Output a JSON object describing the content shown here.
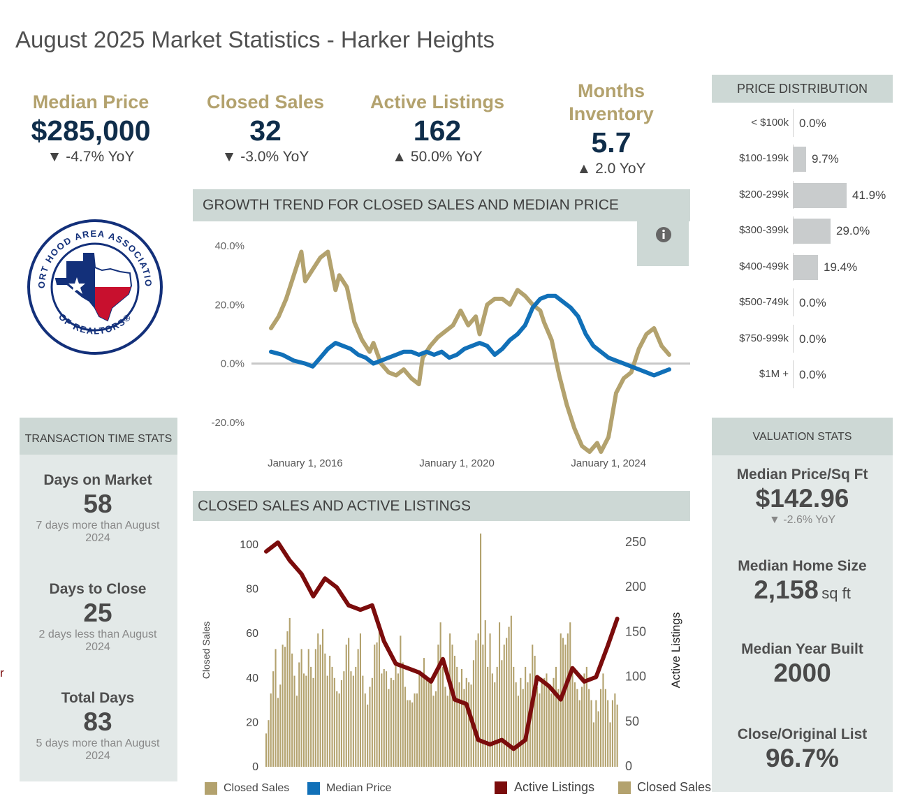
{
  "title": "August 2025 Market Statistics - Harker Heights",
  "kpis": {
    "median_price": {
      "label": "Median Price",
      "value": "$285,000",
      "yoy": "▼ -4.7% YoY"
    },
    "closed_sales": {
      "label": "Closed Sales",
      "value": "32",
      "yoy": "▼ -3.0% YoY"
    },
    "active_listings": {
      "label": "Active Listings",
      "value": "162",
      "yoy": "▲ 50.0% YoY"
    },
    "months_inventory": {
      "label_line1": "Months",
      "label_line2": "Inventory",
      "value": "5.7",
      "yoy": "▲ 2.0 YoY"
    }
  },
  "logo": {
    "top_text": "FORT HOOD AREA ASSOCIATION",
    "bottom_text": "OF REALTORS®"
  },
  "price_distribution": {
    "header": "PRICE DISTRIBUTION",
    "rows": [
      {
        "label": "< $100k",
        "pct": "0.0%",
        "value": 0.0
      },
      {
        "label": "$100-199k",
        "pct": "9.7%",
        "value": 9.7
      },
      {
        "label": "$200-299k",
        "pct": "41.9%",
        "value": 41.9
      },
      {
        "label": "$300-399k",
        "pct": "29.0%",
        "value": 29.0
      },
      {
        "label": "$400-499k",
        "pct": "19.4%",
        "value": 19.4
      },
      {
        "label": "$500-749k",
        "pct": "0.0%",
        "value": 0.0
      },
      {
        "label": "$750-999k",
        "pct": "0.0%",
        "value": 0.0
      },
      {
        "label": "$1M +",
        "pct": "0.0%",
        "value": 0.0
      }
    ]
  },
  "transaction_stats": {
    "header": "TRANSACTION TIME STATS",
    "days_on_market": {
      "label": "Days on Market",
      "value": "58",
      "sub": "7 days more than August 2024"
    },
    "days_to_close": {
      "label": "Days to Close",
      "value": "25",
      "sub": "2 days less than August 2024"
    },
    "total_days": {
      "label": "Total Days",
      "value": "83",
      "sub": "5 days more than August 2024"
    }
  },
  "valuation_stats": {
    "header": "VALUATION STATS",
    "price_per_sqft": {
      "label": "Median Price/Sq Ft",
      "value": "$142.96",
      "yoy": "▼ -2.6% YoY"
    },
    "home_size": {
      "label": "Median Home Size",
      "value": "2,158",
      "unit": "sq ft"
    },
    "year_built": {
      "label": "Median Year Built",
      "value": "2000"
    },
    "close_ratio": {
      "label": "Close/Original List",
      "value": "96.7%"
    }
  },
  "growth_chart": {
    "header": "GROWTH TREND FOR CLOSED SALES AND MEDIAN PRICE",
    "info_icon": "info-icon",
    "legend": [
      {
        "name": "Closed Sales",
        "color": "#b3a26e"
      },
      {
        "name": "Median Price",
        "color": "#1170b8"
      }
    ]
  },
  "sales_chart": {
    "header": "CLOSED SALES AND ACTIVE LISTINGS",
    "legend": [
      {
        "name": "Active Listings",
        "color": "#7b0c0c"
      },
      {
        "name": "Closed Sales",
        "color": "#b3a26e"
      }
    ]
  },
  "stray_char": "r",
  "chart_data": [
    {
      "type": "line",
      "title": "GROWTH TREND FOR CLOSED SALES AND MEDIAN PRICE",
      "ylim": [
        -30,
        45
      ],
      "y_ticks": [
        "40.0%",
        "20.0%",
        "0.0%",
        "-20.0%"
      ],
      "y_tick_values": [
        40,
        20,
        0,
        -20
      ],
      "x_ticks": [
        "January 1, 2016",
        "January 1, 2020",
        "January 1, 2024"
      ],
      "x_tick_values": [
        2016,
        2020,
        2024
      ],
      "x_range": [
        2015.1,
        2025.6
      ],
      "series": [
        {
          "name": "Closed Sales",
          "color": "#b3a26e",
          "x": [
            2015.1,
            2015.3,
            2015.5,
            2015.7,
            2015.9,
            2016.0,
            2016.2,
            2016.4,
            2016.6,
            2016.8,
            2016.9,
            2017.1,
            2017.3,
            2017.5,
            2017.7,
            2017.8,
            2018.0,
            2018.2,
            2018.4,
            2018.6,
            2018.8,
            2019.0,
            2019.1,
            2019.3,
            2019.5,
            2019.7,
            2019.9,
            2020.1,
            2020.3,
            2020.5,
            2020.6,
            2020.8,
            2021.0,
            2021.2,
            2021.4,
            2021.6,
            2021.8,
            2022.0,
            2022.2,
            2022.3,
            2022.5,
            2022.7,
            2022.9,
            2023.1,
            2023.3,
            2023.5,
            2023.7,
            2023.8,
            2024.0,
            2024.2,
            2024.4,
            2024.6,
            2024.8,
            2025.0,
            2025.2,
            2025.4,
            2025.6
          ],
          "y": [
            12,
            16,
            22,
            30,
            38,
            28,
            32,
            36,
            38,
            25,
            30,
            26,
            14,
            8,
            4,
            7,
            0,
            -3,
            -4,
            -2,
            -5,
            -7,
            2,
            6,
            9,
            11,
            13,
            18,
            13,
            16,
            10,
            20,
            22,
            22,
            20,
            25,
            23,
            20,
            18,
            14,
            8,
            -4,
            -14,
            -22,
            -28,
            -30,
            -27,
            -30,
            -25,
            -10,
            -5,
            -3,
            5,
            10,
            12,
            6,
            3
          ]
        },
        {
          "name": "Median Price",
          "color": "#1170b8",
          "x": [
            2015.1,
            2015.4,
            2015.7,
            2016.0,
            2016.2,
            2016.4,
            2016.6,
            2016.8,
            2017.0,
            2017.2,
            2017.4,
            2017.6,
            2017.8,
            2018.0,
            2018.2,
            2018.4,
            2018.6,
            2018.8,
            2019.0,
            2019.2,
            2019.4,
            2019.6,
            2019.8,
            2020.0,
            2020.2,
            2020.4,
            2020.6,
            2020.8,
            2021.0,
            2021.2,
            2021.4,
            2021.6,
            2021.8,
            2022.0,
            2022.2,
            2022.4,
            2022.6,
            2022.8,
            2023.0,
            2023.2,
            2023.4,
            2023.6,
            2023.8,
            2024.0,
            2024.2,
            2024.4,
            2024.6,
            2024.8,
            2025.0,
            2025.2,
            2025.4,
            2025.6
          ],
          "y": [
            4,
            3,
            1,
            0,
            -1,
            2,
            5,
            7,
            6,
            5,
            3,
            2,
            0,
            1,
            2,
            3,
            4,
            4,
            3,
            4,
            3,
            4,
            2,
            3,
            5,
            6,
            7,
            6,
            3,
            5,
            8,
            10,
            13,
            19,
            22,
            23,
            23,
            21,
            19,
            16,
            10,
            6,
            4,
            2,
            1,
            0,
            -1,
            -2,
            -3,
            -4,
            -3,
            -2
          ]
        }
      ]
    },
    {
      "type": "bar",
      "title": "CLOSED SALES AND ACTIVE LISTINGS",
      "ylabel": "Closed Sales",
      "y2label": "Active Listings",
      "ylim": [
        0,
        105
      ],
      "y2lim": [
        0,
        260
      ],
      "y_ticks": [
        0,
        20,
        40,
        60,
        80,
        100
      ],
      "y2_ticks": [
        0,
        50,
        100,
        150,
        200,
        250
      ],
      "series": [
        {
          "name": "Closed Sales",
          "axis": "left",
          "color": "#b3a26e",
          "values": [
            15,
            21,
            33,
            43,
            53,
            31,
            37,
            55,
            54,
            61,
            67,
            51,
            41,
            32,
            47,
            53,
            42,
            41,
            53,
            45,
            40,
            53,
            60,
            55,
            62,
            51,
            41,
            50,
            45,
            40,
            34,
            33,
            39,
            43,
            55,
            58,
            43,
            41,
            45,
            53,
            60,
            41,
            33,
            28,
            36,
            40,
            55,
            56,
            61,
            42,
            44,
            43,
            35,
            40,
            39,
            46,
            42,
            59,
            47,
            36,
            30,
            30,
            29,
            33,
            33,
            42,
            41,
            49,
            41,
            38,
            40,
            32,
            34,
            55,
            65,
            45,
            36,
            32,
            60,
            55,
            50,
            45,
            38,
            44,
            35,
            40,
            38,
            37,
            48,
            57,
            60,
            105,
            55,
            66,
            45,
            60,
            42,
            38,
            45,
            65,
            48,
            55,
            58,
            63,
            68,
            45,
            38,
            32,
            40,
            35,
            45,
            38,
            42,
            55,
            50,
            36,
            33,
            38,
            40,
            42,
            37,
            33,
            40,
            45,
            35,
            60,
            58,
            55,
            60,
            65,
            45,
            38,
            35,
            30,
            36,
            42,
            45,
            35,
            30,
            20,
            30,
            25,
            35,
            42,
            35,
            30,
            20,
            30,
            33,
            28
          ]
        },
        {
          "name": "Active Listings",
          "axis": "right",
          "color": "#7b0c0c",
          "x_points": [
            0,
            5,
            10,
            15,
            20,
            25,
            30,
            35,
            40,
            45,
            50,
            55,
            60,
            65,
            70,
            75,
            80,
            85,
            90,
            95,
            100,
            105,
            110,
            115,
            120,
            125,
            130,
            135,
            140,
            145,
            149
          ],
          "values": [
            240,
            250,
            230,
            215,
            190,
            210,
            200,
            180,
            175,
            180,
            140,
            115,
            110,
            105,
            95,
            120,
            75,
            70,
            30,
            25,
            30,
            20,
            30,
            100,
            90,
            75,
            110,
            95,
            100,
            135,
            165
          ]
        }
      ]
    }
  ]
}
